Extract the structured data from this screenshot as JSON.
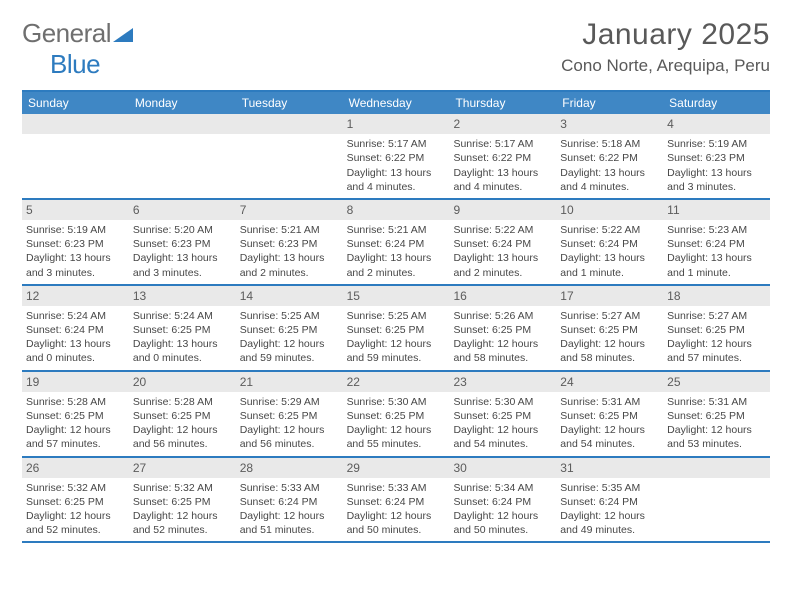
{
  "logo": {
    "general": "General",
    "blue": "Blue"
  },
  "title": "January 2025",
  "location": "Cono Norte, Arequipa, Peru",
  "colors": {
    "header_bar": "#3f87c5",
    "border": "#2d7bbf",
    "daynum_bg": "#e9e9e9",
    "text": "#474747"
  },
  "weekdays": [
    "Sunday",
    "Monday",
    "Tuesday",
    "Wednesday",
    "Thursday",
    "Friday",
    "Saturday"
  ],
  "weeks": [
    [
      {
        "n": "",
        "sr": "",
        "ss": "",
        "dl": ""
      },
      {
        "n": "",
        "sr": "",
        "ss": "",
        "dl": ""
      },
      {
        "n": "",
        "sr": "",
        "ss": "",
        "dl": ""
      },
      {
        "n": "1",
        "sr": "Sunrise: 5:17 AM",
        "ss": "Sunset: 6:22 PM",
        "dl": "Daylight: 13 hours and 4 minutes."
      },
      {
        "n": "2",
        "sr": "Sunrise: 5:17 AM",
        "ss": "Sunset: 6:22 PM",
        "dl": "Daylight: 13 hours and 4 minutes."
      },
      {
        "n": "3",
        "sr": "Sunrise: 5:18 AM",
        "ss": "Sunset: 6:22 PM",
        "dl": "Daylight: 13 hours and 4 minutes."
      },
      {
        "n": "4",
        "sr": "Sunrise: 5:19 AM",
        "ss": "Sunset: 6:23 PM",
        "dl": "Daylight: 13 hours and 3 minutes."
      }
    ],
    [
      {
        "n": "5",
        "sr": "Sunrise: 5:19 AM",
        "ss": "Sunset: 6:23 PM",
        "dl": "Daylight: 13 hours and 3 minutes."
      },
      {
        "n": "6",
        "sr": "Sunrise: 5:20 AM",
        "ss": "Sunset: 6:23 PM",
        "dl": "Daylight: 13 hours and 3 minutes."
      },
      {
        "n": "7",
        "sr": "Sunrise: 5:21 AM",
        "ss": "Sunset: 6:23 PM",
        "dl": "Daylight: 13 hours and 2 minutes."
      },
      {
        "n": "8",
        "sr": "Sunrise: 5:21 AM",
        "ss": "Sunset: 6:24 PM",
        "dl": "Daylight: 13 hours and 2 minutes."
      },
      {
        "n": "9",
        "sr": "Sunrise: 5:22 AM",
        "ss": "Sunset: 6:24 PM",
        "dl": "Daylight: 13 hours and 2 minutes."
      },
      {
        "n": "10",
        "sr": "Sunrise: 5:22 AM",
        "ss": "Sunset: 6:24 PM",
        "dl": "Daylight: 13 hours and 1 minute."
      },
      {
        "n": "11",
        "sr": "Sunrise: 5:23 AM",
        "ss": "Sunset: 6:24 PM",
        "dl": "Daylight: 13 hours and 1 minute."
      }
    ],
    [
      {
        "n": "12",
        "sr": "Sunrise: 5:24 AM",
        "ss": "Sunset: 6:24 PM",
        "dl": "Daylight: 13 hours and 0 minutes."
      },
      {
        "n": "13",
        "sr": "Sunrise: 5:24 AM",
        "ss": "Sunset: 6:25 PM",
        "dl": "Daylight: 13 hours and 0 minutes."
      },
      {
        "n": "14",
        "sr": "Sunrise: 5:25 AM",
        "ss": "Sunset: 6:25 PM",
        "dl": "Daylight: 12 hours and 59 minutes."
      },
      {
        "n": "15",
        "sr": "Sunrise: 5:25 AM",
        "ss": "Sunset: 6:25 PM",
        "dl": "Daylight: 12 hours and 59 minutes."
      },
      {
        "n": "16",
        "sr": "Sunrise: 5:26 AM",
        "ss": "Sunset: 6:25 PM",
        "dl": "Daylight: 12 hours and 58 minutes."
      },
      {
        "n": "17",
        "sr": "Sunrise: 5:27 AM",
        "ss": "Sunset: 6:25 PM",
        "dl": "Daylight: 12 hours and 58 minutes."
      },
      {
        "n": "18",
        "sr": "Sunrise: 5:27 AM",
        "ss": "Sunset: 6:25 PM",
        "dl": "Daylight: 12 hours and 57 minutes."
      }
    ],
    [
      {
        "n": "19",
        "sr": "Sunrise: 5:28 AM",
        "ss": "Sunset: 6:25 PM",
        "dl": "Daylight: 12 hours and 57 minutes."
      },
      {
        "n": "20",
        "sr": "Sunrise: 5:28 AM",
        "ss": "Sunset: 6:25 PM",
        "dl": "Daylight: 12 hours and 56 minutes."
      },
      {
        "n": "21",
        "sr": "Sunrise: 5:29 AM",
        "ss": "Sunset: 6:25 PM",
        "dl": "Daylight: 12 hours and 56 minutes."
      },
      {
        "n": "22",
        "sr": "Sunrise: 5:30 AM",
        "ss": "Sunset: 6:25 PM",
        "dl": "Daylight: 12 hours and 55 minutes."
      },
      {
        "n": "23",
        "sr": "Sunrise: 5:30 AM",
        "ss": "Sunset: 6:25 PM",
        "dl": "Daylight: 12 hours and 54 minutes."
      },
      {
        "n": "24",
        "sr": "Sunrise: 5:31 AM",
        "ss": "Sunset: 6:25 PM",
        "dl": "Daylight: 12 hours and 54 minutes."
      },
      {
        "n": "25",
        "sr": "Sunrise: 5:31 AM",
        "ss": "Sunset: 6:25 PM",
        "dl": "Daylight: 12 hours and 53 minutes."
      }
    ],
    [
      {
        "n": "26",
        "sr": "Sunrise: 5:32 AM",
        "ss": "Sunset: 6:25 PM",
        "dl": "Daylight: 12 hours and 52 minutes."
      },
      {
        "n": "27",
        "sr": "Sunrise: 5:32 AM",
        "ss": "Sunset: 6:25 PM",
        "dl": "Daylight: 12 hours and 52 minutes."
      },
      {
        "n": "28",
        "sr": "Sunrise: 5:33 AM",
        "ss": "Sunset: 6:24 PM",
        "dl": "Daylight: 12 hours and 51 minutes."
      },
      {
        "n": "29",
        "sr": "Sunrise: 5:33 AM",
        "ss": "Sunset: 6:24 PM",
        "dl": "Daylight: 12 hours and 50 minutes."
      },
      {
        "n": "30",
        "sr": "Sunrise: 5:34 AM",
        "ss": "Sunset: 6:24 PM",
        "dl": "Daylight: 12 hours and 50 minutes."
      },
      {
        "n": "31",
        "sr": "Sunrise: 5:35 AM",
        "ss": "Sunset: 6:24 PM",
        "dl": "Daylight: 12 hours and 49 minutes."
      },
      {
        "n": "",
        "sr": "",
        "ss": "",
        "dl": ""
      }
    ]
  ]
}
